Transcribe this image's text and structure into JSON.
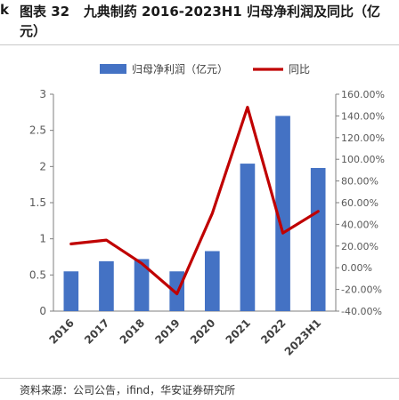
{
  "figure": {
    "number_label": "图表 32",
    "title": "九典制药 2016-2023H1 归母净利润及同比（亿元）",
    "source": "资料来源：公司公告，ifind，华安证券研究所"
  },
  "chart_data": {
    "type": "bar+line",
    "categories": [
      "2016",
      "2017",
      "2018",
      "2019",
      "2020",
      "2021",
      "2022",
      "2023H1"
    ],
    "series": [
      {
        "name": "归母净利润（亿元）",
        "type": "bar",
        "axis": "left",
        "color": "#4472C4",
        "values": [
          0.55,
          0.69,
          0.72,
          0.55,
          0.83,
          2.04,
          2.7,
          1.98
        ]
      },
      {
        "name": "同比",
        "type": "line",
        "axis": "right",
        "color": "#C00000",
        "values": [
          22.0,
          25.5,
          4.0,
          -24.0,
          50.0,
          148.0,
          32.0,
          52.0
        ]
      }
    ],
    "y_left": {
      "ylim": [
        0,
        3
      ],
      "ticks": [
        0,
        0.5,
        1,
        1.5,
        2,
        2.5,
        3
      ],
      "tick_labels": [
        "0",
        "0.5",
        "1",
        "1.5",
        "2",
        "2.5",
        "3"
      ]
    },
    "y_right": {
      "ylim": [
        -40,
        160
      ],
      "ticks": [
        -40,
        -20,
        0,
        20,
        40,
        60,
        80,
        100,
        120,
        140,
        160
      ],
      "tick_labels": [
        "-40.00%",
        "-20.00%",
        "0.00%",
        "20.00%",
        "40.00%",
        "60.00%",
        "80.00%",
        "100.00%",
        "120.00%",
        "140.00%",
        "160.00%"
      ]
    },
    "legend": {
      "placement": "top",
      "entries": [
        "归母净利润（亿元）",
        "同比"
      ]
    },
    "grid": false
  }
}
